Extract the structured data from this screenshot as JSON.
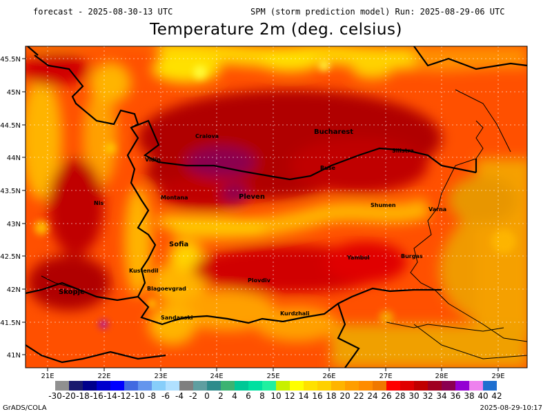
{
  "header": {
    "forecast": "forecast - 2025-08-30-13 UTC",
    "run": "SPM (storm prediction model) Run: 2025-08-29-06 UTC",
    "title": "Temperature 2m (deg. celsius)"
  },
  "axes": {
    "lon_labels": [
      "21E",
      "22E",
      "23E",
      "24E",
      "25E",
      "26E",
      "27E",
      "28E",
      "29E"
    ],
    "lat_labels": [
      "45.5N",
      "45N",
      "44.5N",
      "44N",
      "43.5N",
      "43N",
      "42.5N",
      "42N",
      "41.5N",
      "41N"
    ]
  },
  "cities": [
    {
      "name": "Craiova",
      "big": false
    },
    {
      "name": "Bucharest",
      "big": true
    },
    {
      "name": "Silistra",
      "big": false
    },
    {
      "name": "Ruse",
      "big": false
    },
    {
      "name": "Vidin",
      "big": false
    },
    {
      "name": "Montana",
      "big": false
    },
    {
      "name": "Pleven",
      "big": true
    },
    {
      "name": "Shumen",
      "big": false
    },
    {
      "name": "Varna",
      "big": false
    },
    {
      "name": "Nis",
      "big": false
    },
    {
      "name": "Sofia",
      "big": true
    },
    {
      "name": "Yambol",
      "big": false
    },
    {
      "name": "Burgas",
      "big": false
    },
    {
      "name": "Kustendil",
      "big": false
    },
    {
      "name": "Skopje",
      "big": true
    },
    {
      "name": "Blagoevgrad",
      "big": false
    },
    {
      "name": "Plovdiv",
      "big": false
    },
    {
      "name": "Kurdzhali",
      "big": false
    },
    {
      "name": "Sandanski",
      "big": false
    }
  ],
  "colorbar": {
    "colors": [
      "#909090",
      "#1a1a6e",
      "#00008b",
      "#0000cd",
      "#0000ff",
      "#4169e1",
      "#6495ed",
      "#87cefa",
      "#b0e0ff",
      "#7f7f7f",
      "#5f9ea0",
      "#2e8b8b",
      "#3cb371",
      "#00c896",
      "#00e0a0",
      "#20f0a0",
      "#c8f000",
      "#ffff00",
      "#ffe100",
      "#ffd000",
      "#ffb400",
      "#ff9e00",
      "#ff8c00",
      "#f07800",
      "#ff0000",
      "#e00000",
      "#c00000",
      "#a00020",
      "#8b0050",
      "#9400d3",
      "#ee82ee",
      "#1e6fd0"
    ],
    "labels": [
      "-30",
      "-20",
      "-18",
      "-16",
      "-14",
      "-12",
      "-10",
      "-8",
      "-6",
      "-4",
      "-2",
      "0",
      "2",
      "4",
      "6",
      "8",
      "10",
      "12",
      "14",
      "16",
      "18",
      "20",
      "22",
      "24",
      "26",
      "28",
      "30",
      "32",
      "34",
      "36",
      "38",
      "40",
      "42"
    ]
  },
  "footer": {
    "left": "GrADS/COLA",
    "right": "2025-08-29-10:17"
  }
}
